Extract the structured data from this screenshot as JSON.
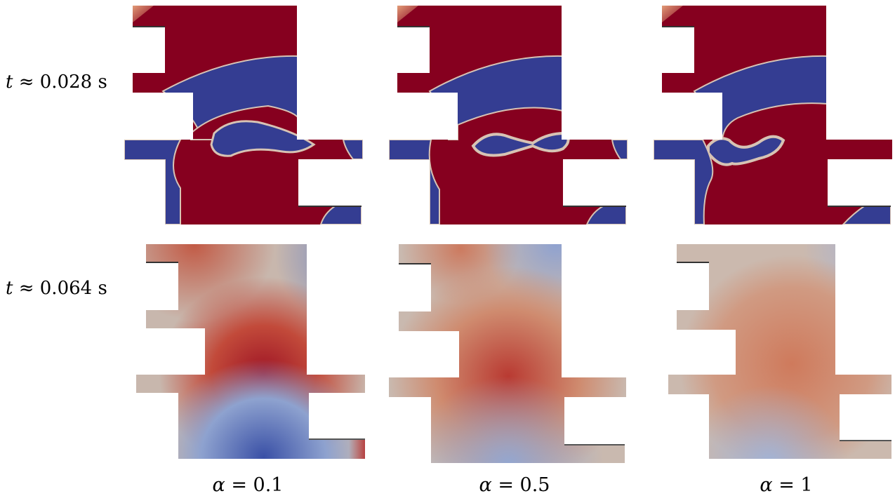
{
  "figure": {
    "rows": [
      {
        "label_prefix": "t",
        "label_rest": " ≈ 0.028 s"
      },
      {
        "label_prefix": "t",
        "label_rest": " ≈ 0.064 s"
      }
    ],
    "columns": [
      {
        "label_prefix": "α",
        "label_rest": " = 0.1"
      },
      {
        "label_prefix": "α",
        "label_rest": " = 0.5"
      },
      {
        "label_prefix": "α",
        "label_rest": " = 1"
      }
    ]
  },
  "colors": {
    "phase_red": "#86001f",
    "phase_blue": "#343d92",
    "interface": "#d7c3b4",
    "smooth_red": "#b4272f",
    "smooth_mid": "#c9b8ae",
    "smooth_blue": "#4d65b3",
    "smooth_salmon": "#d3866a"
  }
}
